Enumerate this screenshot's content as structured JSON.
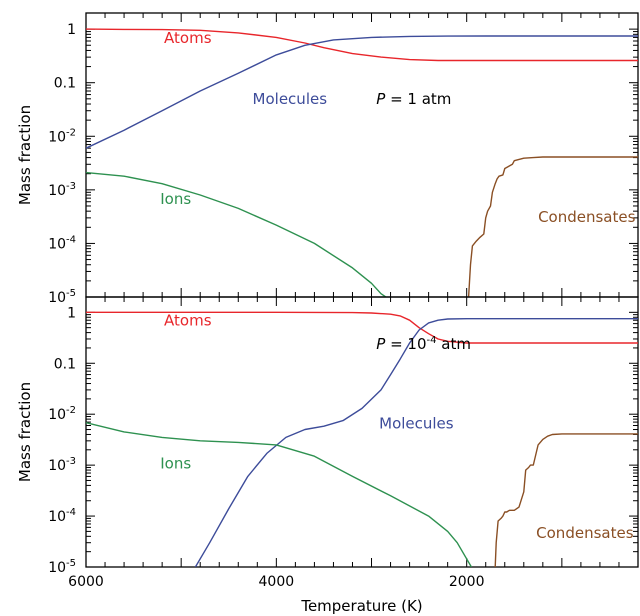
{
  "colors": {
    "Atoms": "#e8262b",
    "Molecules": "#3d4c9a",
    "Ions": "#2e9150",
    "Condensates": "#8a4f24"
  },
  "chart_data": [
    {
      "type": "line",
      "xlabel": "Temperature (K)",
      "ylabel": "Mass fraction",
      "x_axis_reversed": true,
      "xlim": [
        6000,
        200
      ],
      "ylim": [
        1e-05,
        2
      ],
      "yscale": "log",
      "x_ticks": [
        "6000",
        "4000",
        "2000"
      ],
      "y_ticks": [
        {
          "base": "1",
          "exp": ""
        },
        {
          "base": "0.1",
          "exp": ""
        },
        {
          "base": "10",
          "exp": "-2"
        },
        {
          "base": "10",
          "exp": "-3"
        },
        {
          "base": "10",
          "exp": "-4"
        },
        {
          "base": "10",
          "exp": "-5"
        }
      ],
      "pressure_label": {
        "symbol": "P",
        "eq": " = ",
        "base": "1",
        "exp": "",
        "unit": " atm"
      },
      "series": [
        {
          "name": "Atoms",
          "x": [
            6000,
            5600,
            5200,
            4800,
            4400,
            4000,
            3700,
            3500,
            3200,
            2900,
            2600,
            2300,
            2000,
            1000,
            200
          ],
          "y": [
            1.0,
            0.99,
            0.98,
            0.95,
            0.85,
            0.7,
            0.55,
            0.45,
            0.35,
            0.3,
            0.27,
            0.26,
            0.26,
            0.26,
            0.26
          ]
        },
        {
          "name": "Molecules",
          "x": [
            6000,
            5600,
            5200,
            4800,
            4400,
            4000,
            3700,
            3400,
            3000,
            2600,
            2200,
            1800,
            1000,
            200
          ],
          "y": [
            0.006,
            0.013,
            0.03,
            0.07,
            0.15,
            0.33,
            0.5,
            0.63,
            0.7,
            0.73,
            0.74,
            0.745,
            0.745,
            0.745
          ]
        },
        {
          "name": "Ions",
          "x": [
            6000,
            5600,
            5200,
            4800,
            4400,
            4000,
            3600,
            3200,
            3000,
            2900,
            2850
          ],
          "y": [
            0.0021,
            0.0018,
            0.0013,
            0.0008,
            0.00045,
            0.00022,
            0.0001,
            3.5e-05,
            1.8e-05,
            1.15e-05,
            1e-05
          ]
        },
        {
          "name": "Condensates",
          "x": [
            1980,
            1960,
            1940,
            1900,
            1860,
            1820,
            1800,
            1780,
            1750,
            1730,
            1700,
            1680,
            1660,
            1620,
            1600,
            1550,
            1520,
            1500,
            1450,
            1400,
            1300,
            1200,
            1000,
            600,
            200
          ],
          "y": [
            1e-05,
            4e-05,
            9e-05,
            0.00011,
            0.00013,
            0.00015,
            0.0003,
            0.0004,
            0.0005,
            0.0009,
            0.0013,
            0.0016,
            0.0018,
            0.0019,
            0.0025,
            0.0028,
            0.003,
            0.0035,
            0.0037,
            0.0039,
            0.004,
            0.0041,
            0.0041,
            0.0041,
            0.0041
          ]
        }
      ],
      "series_labels": [
        {
          "name": "Atoms",
          "x": 5180,
          "y": 0.55
        },
        {
          "name": "Molecules",
          "x": 4250,
          "y": 0.04
        },
        {
          "name": "Ions",
          "x": 5220,
          "y": 0.00055
        },
        {
          "name": "Condensates",
          "x": 1250,
          "y": 0.00025
        }
      ],
      "pressure_label_pos": {
        "x": 2950,
        "y": 0.04
      }
    },
    {
      "type": "line",
      "xlabel": "Temperature (K)",
      "ylabel": "Mass fraction",
      "x_axis_reversed": true,
      "xlim": [
        6000,
        200
      ],
      "ylim": [
        1e-05,
        2
      ],
      "yscale": "log",
      "x_ticks": [
        "6000",
        "4000",
        "2000"
      ],
      "y_ticks": [
        {
          "base": "1",
          "exp": ""
        },
        {
          "base": "0.1",
          "exp": ""
        },
        {
          "base": "10",
          "exp": "-2"
        },
        {
          "base": "10",
          "exp": "-3"
        },
        {
          "base": "10",
          "exp": "-4"
        },
        {
          "base": "10",
          "exp": "-5"
        }
      ],
      "pressure_label": {
        "symbol": "P",
        "eq": " = ",
        "base": "10",
        "exp": "-4",
        "unit": " atm"
      },
      "series": [
        {
          "name": "Atoms",
          "x": [
            6000,
            5000,
            4000,
            3200,
            3000,
            2800,
            2700,
            2600,
            2500,
            2400,
            2300,
            2200,
            2000,
            1500,
            1000,
            200
          ],
          "y": [
            1.0,
            1.0,
            1.0,
            0.99,
            0.97,
            0.92,
            0.85,
            0.7,
            0.5,
            0.38,
            0.3,
            0.27,
            0.25,
            0.25,
            0.25,
            0.25
          ]
        },
        {
          "name": "Molecules",
          "x": [
            4850,
            4700,
            4500,
            4300,
            4100,
            3900,
            3700,
            3500,
            3300,
            3100,
            2900,
            2800,
            2700,
            2600,
            2500,
            2400,
            2300,
            2200,
            2000,
            1500,
            1000,
            200
          ],
          "y": [
            1e-05,
            3e-05,
            0.00014,
            0.0006,
            0.0017,
            0.0035,
            0.005,
            0.0058,
            0.0075,
            0.013,
            0.03,
            0.06,
            0.12,
            0.25,
            0.45,
            0.62,
            0.7,
            0.74,
            0.75,
            0.75,
            0.75,
            0.75
          ]
        },
        {
          "name": "Ions",
          "x": [
            6000,
            5600,
            5200,
            4800,
            4400,
            4000,
            3600,
            3200,
            2800,
            2400,
            2200,
            2100,
            1950
          ],
          "y": [
            0.0068,
            0.0045,
            0.0035,
            0.003,
            0.0028,
            0.0025,
            0.0015,
            0.0006,
            0.00025,
            0.0001,
            5e-05,
            3e-05,
            1e-05
          ]
        },
        {
          "name": "Condensates",
          "x": [
            1700,
            1690,
            1670,
            1640,
            1620,
            1600,
            1580,
            1550,
            1500,
            1450,
            1400,
            1380,
            1350,
            1330,
            1300,
            1250,
            1200,
            1150,
            1100,
            1000,
            600,
            200
          ],
          "y": [
            1e-05,
            3e-05,
            8e-05,
            9e-05,
            0.0001,
            0.00012,
            0.00012,
            0.00013,
            0.00013,
            0.00015,
            0.0003,
            0.0008,
            0.0009,
            0.001,
            0.001,
            0.0025,
            0.0032,
            0.0037,
            0.004,
            0.0041,
            0.0041,
            0.0041
          ]
        }
      ],
      "series_labels": [
        {
          "name": "Atoms",
          "x": 5180,
          "y": 0.55
        },
        {
          "name": "Molecules",
          "x": 2920,
          "y": 0.0052
        },
        {
          "name": "Ions",
          "x": 5220,
          "y": 0.00085
        },
        {
          "name": "Condensates",
          "x": 1270,
          "y": 3.7e-05
        }
      ],
      "pressure_label_pos": {
        "x": 2950,
        "y": 0.19
      }
    }
  ]
}
